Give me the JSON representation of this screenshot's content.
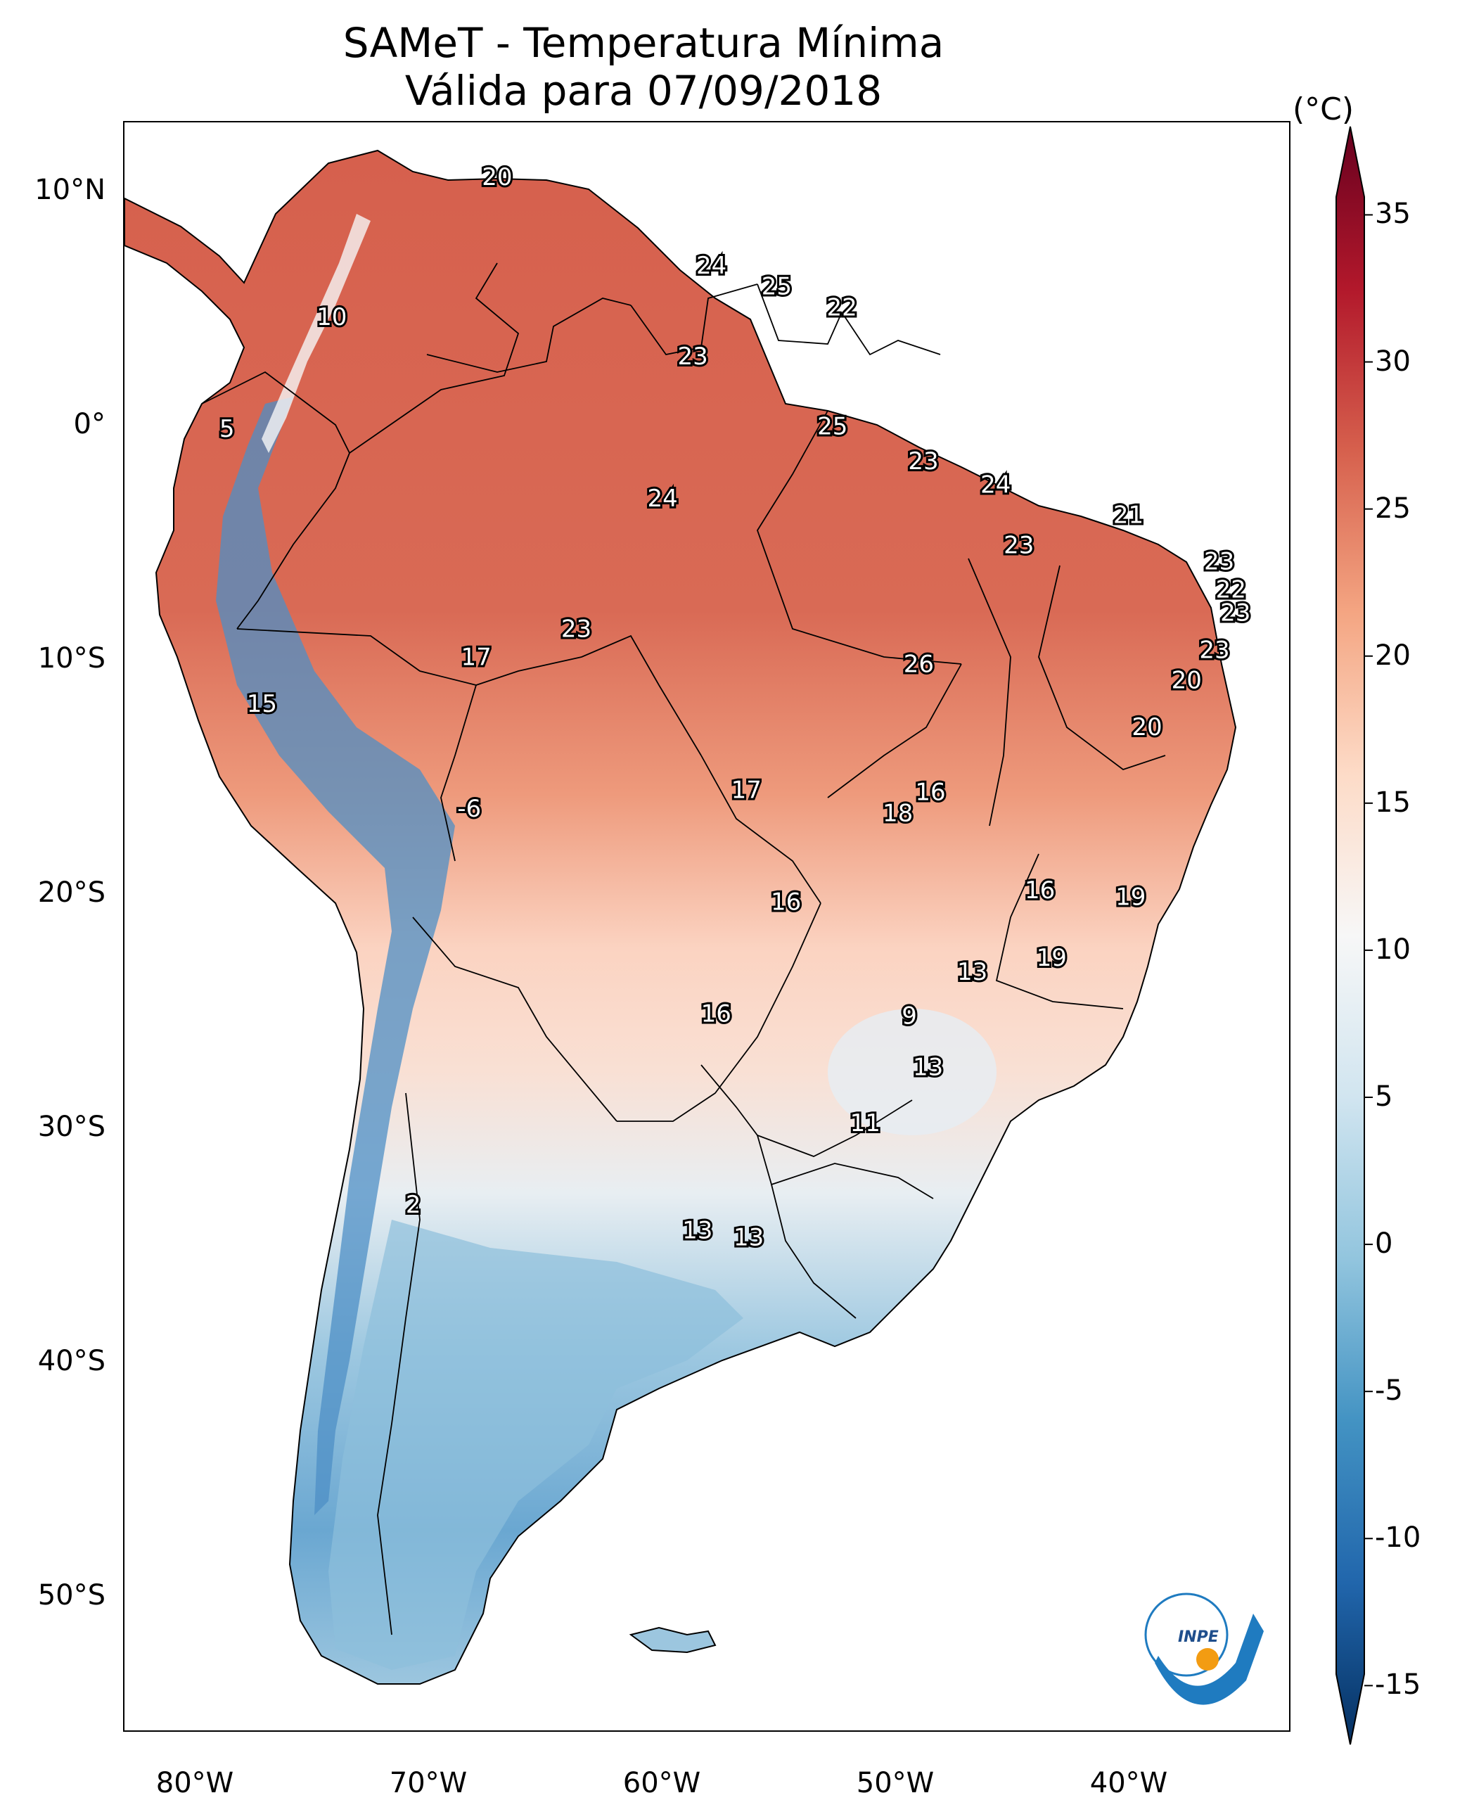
{
  "title": {
    "line1": "SAMeT - Temperatura Mínima",
    "line2": "Válida para 07/09/2018"
  },
  "colorbar": {
    "unit": "(°C)",
    "ticks": [
      "35",
      "30",
      "25",
      "20",
      "15",
      "10",
      "5",
      "0",
      "-5",
      "-10",
      "-15"
    ],
    "tick_values": [
      35,
      30,
      25,
      20,
      15,
      10,
      5,
      0,
      -5,
      -10,
      -15
    ],
    "range": [
      -17,
      38
    ],
    "colors": [
      "#053061",
      "#2166ac",
      "#4393c3",
      "#92c5de",
      "#d1e5f0",
      "#f7f7f7",
      "#fddbc7",
      "#f4a582",
      "#d6604d",
      "#b2182b",
      "#67001f"
    ]
  },
  "axes": {
    "lat_labels": [
      "10°N",
      "0°",
      "10°S",
      "20°S",
      "30°S",
      "40°S",
      "50°S"
    ],
    "lon_labels": [
      "80°W",
      "70°W",
      "60°W",
      "50°W",
      "40°W"
    ]
  },
  "logo": {
    "text": "INPE"
  },
  "chart_data": {
    "type": "map",
    "variable": "Temperatura Mínima (°C)",
    "extent": {
      "lon": [
        -83,
        -33
      ],
      "lat": [
        -56,
        13
      ]
    },
    "labels": [
      {
        "lon": -67.0,
        "lat": 10.6,
        "value": "20"
      },
      {
        "lon": -57.8,
        "lat": 6.8,
        "value": "24"
      },
      {
        "lon": -55.0,
        "lat": 5.9,
        "value": "25"
      },
      {
        "lon": -52.2,
        "lat": 5.0,
        "value": "22"
      },
      {
        "lon": -74.1,
        "lat": 4.6,
        "value": "10"
      },
      {
        "lon": -58.6,
        "lat": 2.9,
        "value": "23"
      },
      {
        "lon": -78.6,
        "lat": -0.2,
        "value": "5"
      },
      {
        "lon": -52.6,
        "lat": -0.1,
        "value": "25"
      },
      {
        "lon": -48.7,
        "lat": -1.6,
        "value": "23"
      },
      {
        "lon": -45.6,
        "lat": -2.6,
        "value": "24"
      },
      {
        "lon": -59.9,
        "lat": -3.2,
        "value": "24"
      },
      {
        "lon": -39.9,
        "lat": -3.9,
        "value": "21"
      },
      {
        "lon": -44.6,
        "lat": -5.2,
        "value": "23"
      },
      {
        "lon": -36.0,
        "lat": -5.9,
        "value": "23"
      },
      {
        "lon": -35.5,
        "lat": -7.1,
        "value": "22"
      },
      {
        "lon": -35.3,
        "lat": -8.1,
        "value": "23"
      },
      {
        "lon": -63.6,
        "lat": -8.8,
        "value": "23"
      },
      {
        "lon": -36.2,
        "lat": -9.7,
        "value": "23"
      },
      {
        "lon": -67.9,
        "lat": -10.0,
        "value": "17"
      },
      {
        "lon": -48.9,
        "lat": -10.3,
        "value": "26"
      },
      {
        "lon": -37.4,
        "lat": -11.0,
        "value": "20"
      },
      {
        "lon": -77.1,
        "lat": -12.0,
        "value": "15"
      },
      {
        "lon": -39.1,
        "lat": -13.0,
        "value": "20"
      },
      {
        "lon": -56.3,
        "lat": -15.7,
        "value": "17"
      },
      {
        "lon": -48.4,
        "lat": -15.8,
        "value": "16"
      },
      {
        "lon": -49.8,
        "lat": -16.7,
        "value": "18"
      },
      {
        "lon": -68.2,
        "lat": -16.5,
        "value": "-6"
      },
      {
        "lon": -54.6,
        "lat": -20.5,
        "value": "16"
      },
      {
        "lon": -43.7,
        "lat": -20.0,
        "value": "16"
      },
      {
        "lon": -39.8,
        "lat": -20.3,
        "value": "19"
      },
      {
        "lon": -46.6,
        "lat": -23.5,
        "value": "13"
      },
      {
        "lon": -43.2,
        "lat": -22.9,
        "value": "19"
      },
      {
        "lon": -57.6,
        "lat": -25.3,
        "value": "16"
      },
      {
        "lon": -49.3,
        "lat": -25.4,
        "value": "9"
      },
      {
        "lon": -48.5,
        "lat": -27.6,
        "value": "13"
      },
      {
        "lon": -51.2,
        "lat": -30.0,
        "value": "11"
      },
      {
        "lon": -70.6,
        "lat": -33.5,
        "value": "2"
      },
      {
        "lon": -58.4,
        "lat": -34.6,
        "value": "13"
      },
      {
        "lon": -56.2,
        "lat": -34.9,
        "value": "13"
      }
    ]
  }
}
